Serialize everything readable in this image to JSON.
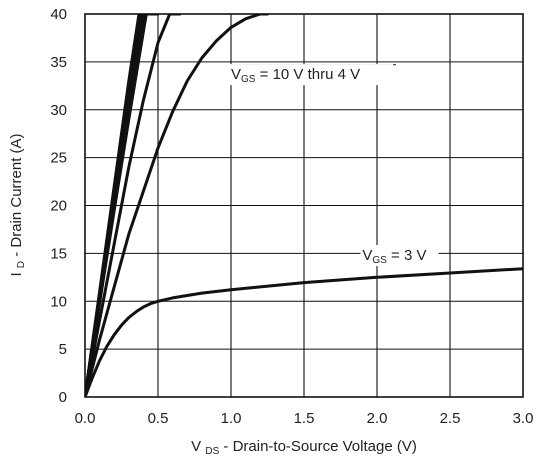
{
  "chart_data": {
    "type": "line",
    "title": "",
    "xlabel": {
      "main": "V",
      "sub": "DS",
      "rest": " - Drain-to-Source Voltage (V)"
    },
    "ylabel": {
      "main": "I",
      "sub": "D",
      "rest": " - Drain Current (A)"
    },
    "xlim": [
      0,
      3.0
    ],
    "ylim": [
      0,
      40
    ],
    "xticks": [
      "0.0",
      "0.5",
      "1.0",
      "1.5",
      "2.0",
      "2.5",
      "3.0"
    ],
    "yticks": [
      "0",
      "5",
      "10",
      "15",
      "20",
      "25",
      "30",
      "35",
      "40"
    ],
    "grid": true,
    "series": [
      {
        "x": [
          0,
          0.1,
          0.2,
          0.3,
          0.37,
          0.45
        ],
        "y": [
          0,
          11,
          22,
          33,
          40,
          40
        ]
      },
      {
        "x": [
          0,
          0.1,
          0.2,
          0.3,
          0.38,
          0.46
        ],
        "y": [
          0,
          10.8,
          21.5,
          32,
          40,
          40
        ]
      },
      {
        "x": [
          0,
          0.1,
          0.2,
          0.3,
          0.39,
          0.47
        ],
        "y": [
          0,
          10.5,
          21,
          31,
          40,
          40
        ]
      },
      {
        "x": [
          0,
          0.1,
          0.2,
          0.3,
          0.4,
          0.48
        ],
        "y": [
          0,
          10.3,
          20.5,
          30.5,
          40,
          40
        ]
      },
      {
        "x": [
          0,
          0.1,
          0.2,
          0.3,
          0.41,
          0.49
        ],
        "y": [
          0,
          10,
          20,
          30,
          40,
          40
        ]
      },
      {
        "x": [
          0,
          0.1,
          0.2,
          0.3,
          0.42,
          0.5
        ],
        "y": [
          0,
          9.8,
          19.5,
          29,
          40,
          40
        ]
      },
      {
        "x": [
          0,
          0.1,
          0.2,
          0.3,
          0.4,
          0.5,
          0.58,
          0.65
        ],
        "y": [
          0,
          8,
          16,
          24,
          31,
          37,
          40,
          40
        ]
      },
      {
        "x": [
          0,
          0.1,
          0.2,
          0.3,
          0.4,
          0.5,
          0.6,
          0.7,
          0.8,
          0.9,
          1.0,
          1.1,
          1.2,
          1.25
        ],
        "y": [
          0,
          6,
          11.5,
          17,
          21.5,
          26,
          29.8,
          33,
          35.4,
          37.2,
          38.6,
          39.5,
          40,
          40
        ]
      },
      {
        "x": [
          0,
          0.05,
          0.1,
          0.15,
          0.2,
          0.25,
          0.3,
          0.35,
          0.4,
          0.45,
          0.5,
          0.6,
          0.7,
          0.8,
          1.0,
          1.2,
          1.5,
          2.0,
          2.5,
          3.0
        ],
        "y": [
          0,
          2,
          3.8,
          5.3,
          6.5,
          7.5,
          8.3,
          8.9,
          9.4,
          9.75,
          10,
          10.35,
          10.6,
          10.85,
          11.2,
          11.5,
          11.95,
          12.5,
          12.95,
          13.4
        ]
      }
    ],
    "annotations": [
      {
        "main": "V",
        "sub": "GS",
        "rest": " = 10 V thru 4 V",
        "x": 1.0,
        "y": 33.2,
        "line_x": [
          1.0,
          2.13
        ],
        "line_y": [
          34.7,
          34.7
        ]
      },
      {
        "main": "V",
        "sub": "GS",
        "rest": " = 3 V",
        "x": 1.9,
        "y": 14.3,
        "line_x": [
          1.9,
          2.41
        ],
        "line_y": [
          15.0,
          15.0
        ]
      }
    ],
    "colors": {
      "line": "#111111",
      "grid": "#111111",
      "background": "#ffffff"
    }
  }
}
